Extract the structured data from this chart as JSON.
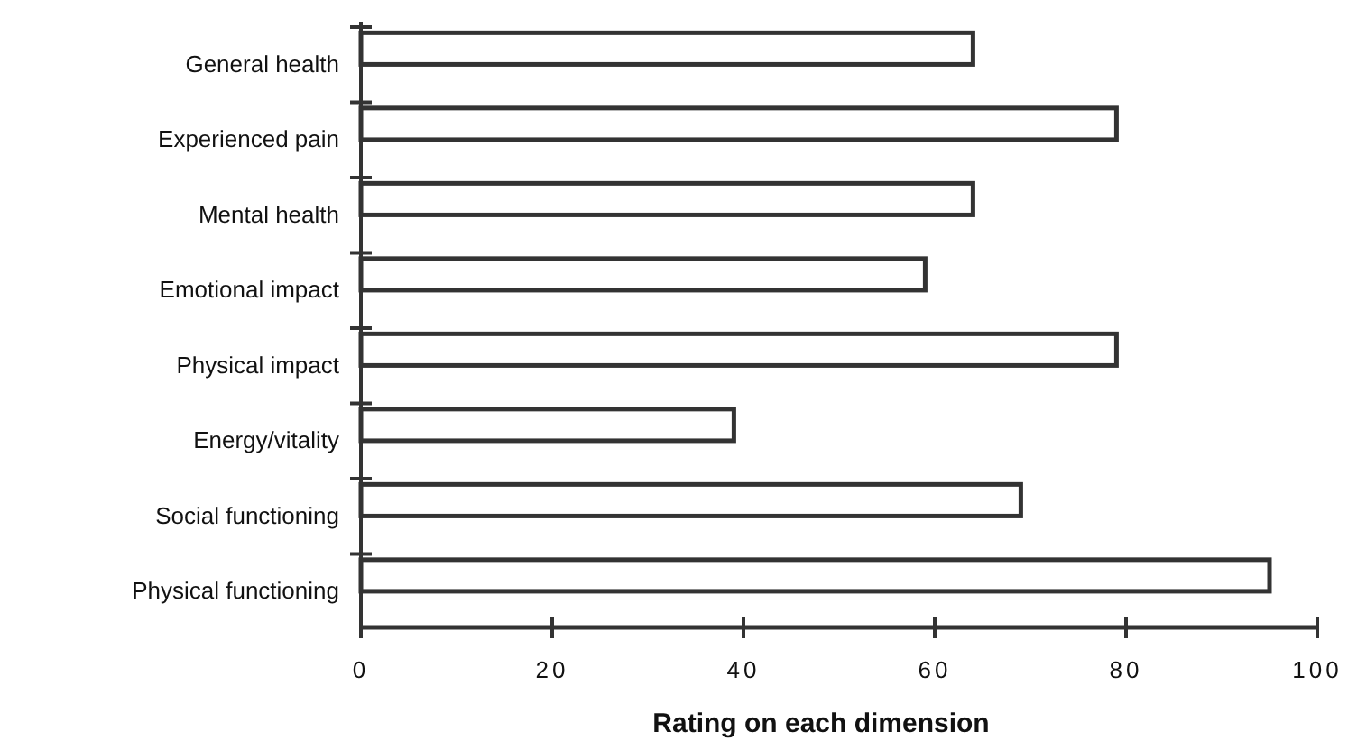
{
  "chart_data": {
    "type": "bar",
    "orientation": "horizontal",
    "xlabel": "Rating on each dimension",
    "categories": [
      "General health",
      "Experienced pain",
      "Mental health",
      "Emotional impact",
      "Physical impact",
      "Energy/vitality",
      "Social functioning",
      "Physical functioning"
    ],
    "values": [
      64,
      79,
      64,
      59,
      79,
      39,
      69,
      95
    ],
    "color": "#ffffff",
    "xlim": [
      0,
      100
    ],
    "xticks": [
      0,
      20,
      40,
      60,
      80,
      100
    ],
    "grid": false
  }
}
